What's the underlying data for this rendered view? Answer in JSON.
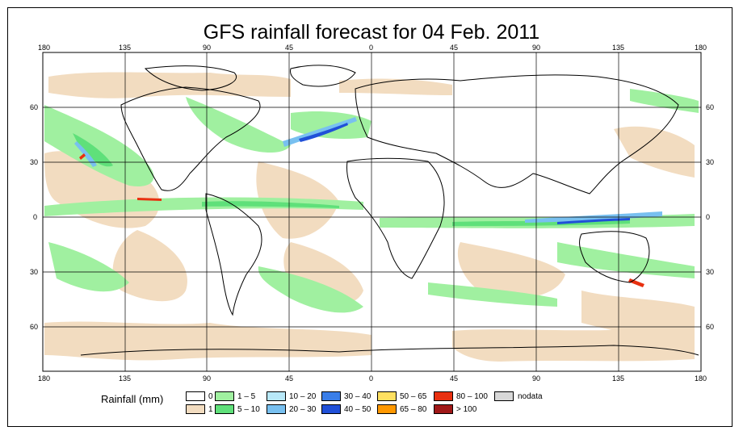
{
  "title": "GFS rainfall forecast for 04 Feb. 2011",
  "axes": {
    "lon_labels": [
      "180",
      "135",
      "90",
      "45",
      "0",
      "45",
      "90",
      "135",
      "180"
    ],
    "lat_labels": [
      "60",
      "30",
      "0",
      "30",
      "60"
    ]
  },
  "legend": {
    "title": "Rainfall (mm)",
    "items": [
      {
        "label": "0",
        "color": "#ffffff"
      },
      {
        "label": "1",
        "color": "#f2dcc0"
      },
      {
        "label": "1 – 5",
        "color": "#a0f0a0"
      },
      {
        "label": "5 – 10",
        "color": "#5fe07a"
      },
      {
        "label": "10 – 20",
        "color": "#b8e8f8"
      },
      {
        "label": "20 – 30",
        "color": "#78c0f0"
      },
      {
        "label": "30 – 40",
        "color": "#3a7ee8"
      },
      {
        "label": "40 – 50",
        "color": "#2050d8"
      },
      {
        "label": "50 – 65",
        "color": "#ffe060"
      },
      {
        "label": "65 – 80",
        "color": "#ff9800"
      },
      {
        "label": "80 – 100",
        "color": "#e83010"
      },
      {
        "label": "> 100",
        "color": "#a01818"
      },
      {
        "label": "nodata",
        "color": "#d8d8d8"
      }
    ]
  }
}
